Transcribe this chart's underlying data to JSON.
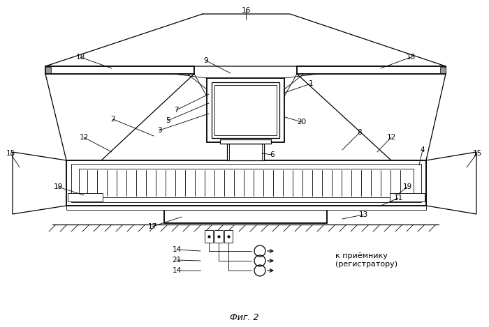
{
  "bg_color": "#ffffff",
  "line_color": "#000000",
  "fig_label": "Фиг. 2",
  "receiver_label": "к приёмнику\n(регистратору)"
}
